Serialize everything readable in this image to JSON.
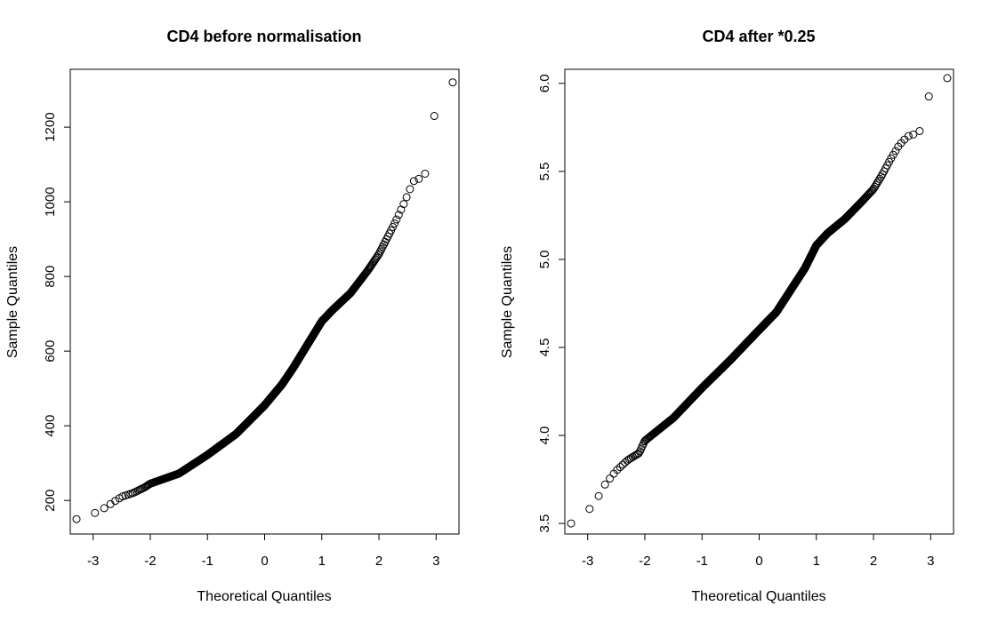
{
  "chart_data": [
    {
      "type": "scatter",
      "title": "CD4 before normalisation",
      "xlabel": "Theoretical Quantiles",
      "ylabel": "Sample Quantiles",
      "xlim": [
        -3.4,
        3.4
      ],
      "ylim": [
        110,
        1355
      ],
      "xticks": [
        -3,
        -2,
        -1,
        0,
        1,
        2,
        3
      ],
      "yticks": [
        200,
        400,
        600,
        800,
        1000,
        1200
      ],
      "xtick_labels": [
        "-3",
        "-2",
        "-1",
        "0",
        "1",
        "2",
        "3"
      ],
      "ytick_labels": [
        "200",
        "400",
        "600",
        "800",
        "1000",
        "1200"
      ],
      "grid": false,
      "n_points": 1000,
      "anchors": [
        [
          -3.29,
          150
        ],
        [
          -2.9,
          170
        ],
        [
          -2.7,
          190
        ],
        [
          -2.5,
          210
        ],
        [
          -2.3,
          220
        ],
        [
          -2.1,
          235
        ],
        [
          -2.0,
          245
        ],
        [
          -1.5,
          272
        ],
        [
          -1.0,
          322
        ],
        [
          -0.5,
          378
        ],
        [
          0.0,
          455
        ],
        [
          0.3,
          510
        ],
        [
          0.5,
          555
        ],
        [
          0.8,
          630
        ],
        [
          1.0,
          680
        ],
        [
          1.2,
          712
        ],
        [
          1.5,
          755
        ],
        [
          1.8,
          815
        ],
        [
          2.0,
          860
        ],
        [
          2.15,
          905
        ],
        [
          2.3,
          950
        ],
        [
          2.45,
          1000
        ],
        [
          2.6,
          1055
        ],
        [
          2.8,
          1068
        ],
        [
          2.95,
          1225
        ],
        [
          3.29,
          1320
        ]
      ]
    },
    {
      "type": "scatter",
      "title": "CD4 after *0.25",
      "xlabel": "Theoretical Quantiles",
      "ylabel": "Sample Quantiles",
      "xlim": [
        -3.4,
        3.4
      ],
      "ylim": [
        3.44,
        6.08
      ],
      "xticks": [
        -3,
        -2,
        -1,
        0,
        1,
        2,
        3
      ],
      "yticks": [
        3.5,
        4.0,
        4.5,
        5.0,
        5.5,
        6.0
      ],
      "xtick_labels": [
        "-3",
        "-2",
        "-1",
        "0",
        "1",
        "2",
        "3"
      ],
      "ytick_labels": [
        "3.5",
        "4.0",
        "4.5",
        "5.0",
        "5.5",
        "6.0"
      ],
      "grid": false,
      "n_points": 1000,
      "anchors": [
        [
          -3.29,
          3.5
        ],
        [
          -2.9,
          3.6
        ],
        [
          -2.7,
          3.72
        ],
        [
          -2.5,
          3.8
        ],
        [
          -2.3,
          3.86
        ],
        [
          -2.1,
          3.9
        ],
        [
          -2.0,
          3.97
        ],
        [
          -1.5,
          4.1
        ],
        [
          -1.0,
          4.27
        ],
        [
          -0.5,
          4.43
        ],
        [
          0.0,
          4.6
        ],
        [
          0.3,
          4.7
        ],
        [
          0.5,
          4.8
        ],
        [
          0.8,
          4.95
        ],
        [
          1.0,
          5.08
        ],
        [
          1.2,
          5.15
        ],
        [
          1.5,
          5.23
        ],
        [
          1.8,
          5.33
        ],
        [
          2.0,
          5.4
        ],
        [
          2.15,
          5.48
        ],
        [
          2.3,
          5.57
        ],
        [
          2.45,
          5.65
        ],
        [
          2.6,
          5.7
        ],
        [
          2.8,
          5.72
        ],
        [
          2.95,
          5.92
        ],
        [
          3.29,
          6.03
        ]
      ]
    }
  ]
}
